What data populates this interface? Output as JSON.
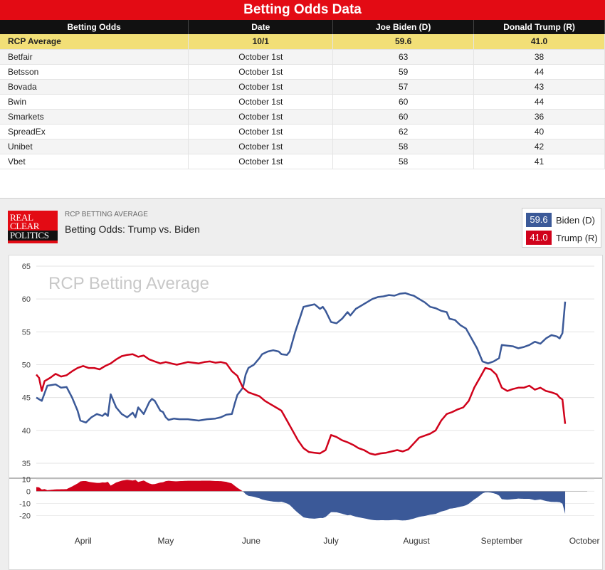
{
  "table": {
    "title": "Betting Odds Data",
    "headers": [
      "Betting Odds",
      "Date",
      "Joe Biden (D)",
      "Donald Trump (R)"
    ],
    "average": {
      "source": "RCP Average",
      "date": "10/1",
      "biden": "59.6",
      "trump": "41.0"
    },
    "rows": [
      {
        "source": "Betfair",
        "date": "October 1st",
        "biden": "63",
        "trump": "38"
      },
      {
        "source": "Betsson",
        "date": "October 1st",
        "biden": "59",
        "trump": "44"
      },
      {
        "source": "Bovada",
        "date": "October 1st",
        "biden": "57",
        "trump": "43"
      },
      {
        "source": "Bwin",
        "date": "October 1st",
        "biden": "60",
        "trump": "44"
      },
      {
        "source": "Smarkets",
        "date": "October 1st",
        "biden": "60",
        "trump": "36"
      },
      {
        "source": "SpreadEx",
        "date": "October 1st",
        "biden": "62",
        "trump": "40"
      },
      {
        "source": "Unibet",
        "date": "October 1st",
        "biden": "58",
        "trump": "42"
      },
      {
        "source": "Vbet",
        "date": "October 1st",
        "biden": "58",
        "trump": "41"
      }
    ]
  },
  "chart_header": {
    "logo": [
      "REAL",
      "CLEAR",
      "POLITICS"
    ],
    "subtitle": "RCP BETTING AVERAGE",
    "title": "Betting Odds: Trump vs. Biden",
    "legend": [
      {
        "value": "59.6",
        "label": "Biden (D)",
        "color": "#3b5998"
      },
      {
        "value": "41.0",
        "label": "Trump (R)",
        "color": "#d0021b"
      }
    ]
  },
  "chart_data": {
    "type": "line",
    "watermark": "RCP Betting Average",
    "x_labels": [
      "April",
      "May",
      "June",
      "July",
      "August",
      "September",
      "October"
    ],
    "x_label_days": [
      17,
      47,
      78,
      107,
      138,
      169,
      199
    ],
    "x_range_days": [
      0,
      200
    ],
    "ylim": [
      35,
      65
    ],
    "yticks": [
      65,
      60,
      55,
      50,
      45,
      40,
      35
    ],
    "spread_ylim": [
      -25,
      12
    ],
    "spread_yticks": [
      10,
      0,
      -10,
      -20
    ],
    "colors": {
      "biden": "#3b5998",
      "trump": "#d0021b"
    },
    "series": [
      {
        "name": "Biden (D)",
        "key": "biden",
        "points": [
          [
            0,
            45.0
          ],
          [
            2,
            44.5
          ],
          [
            4,
            46.8
          ],
          [
            7,
            47.0
          ],
          [
            9,
            46.5
          ],
          [
            11,
            46.6
          ],
          [
            13,
            45.0
          ],
          [
            15,
            43.0
          ],
          [
            16,
            41.5
          ],
          [
            18,
            41.2
          ],
          [
            20,
            42.0
          ],
          [
            22,
            42.5
          ],
          [
            24,
            42.2
          ],
          [
            25,
            42.6
          ],
          [
            26,
            42.2
          ],
          [
            27,
            45.5
          ],
          [
            29,
            43.5
          ],
          [
            31,
            42.5
          ],
          [
            33,
            42.0
          ],
          [
            35,
            42.7
          ],
          [
            36,
            42.0
          ],
          [
            37,
            43.5
          ],
          [
            39,
            42.5
          ],
          [
            41,
            44.3
          ],
          [
            42,
            44.8
          ],
          [
            43,
            44.5
          ],
          [
            45,
            43.0
          ],
          [
            46,
            42.8
          ],
          [
            47,
            42.0
          ],
          [
            48,
            41.6
          ],
          [
            50,
            41.8
          ],
          [
            52,
            41.7
          ],
          [
            55,
            41.7
          ],
          [
            57,
            41.6
          ],
          [
            59,
            41.5
          ],
          [
            62,
            41.7
          ],
          [
            65,
            41.8
          ],
          [
            67,
            42.0
          ],
          [
            69,
            42.4
          ],
          [
            71,
            42.5
          ],
          [
            72,
            44.0
          ],
          [
            73,
            45.4
          ],
          [
            75,
            46.5
          ],
          [
            76,
            48.5
          ],
          [
            77,
            49.5
          ],
          [
            79,
            50.0
          ],
          [
            81,
            51.0
          ],
          [
            82,
            51.6
          ],
          [
            84,
            52.0
          ],
          [
            86,
            52.2
          ],
          [
            88,
            52.0
          ],
          [
            89,
            51.6
          ],
          [
            91,
            51.5
          ],
          [
            92,
            52.0
          ],
          [
            93,
            53.5
          ],
          [
            94,
            55.0
          ],
          [
            96,
            57.5
          ],
          [
            97,
            58.8
          ],
          [
            99,
            59.0
          ],
          [
            101,
            59.2
          ],
          [
            103,
            58.5
          ],
          [
            104,
            58.8
          ],
          [
            105,
            58.2
          ],
          [
            107,
            56.5
          ],
          [
            109,
            56.3
          ],
          [
            111,
            57.0
          ],
          [
            113,
            58.0
          ],
          [
            114,
            57.5
          ],
          [
            116,
            58.5
          ],
          [
            118,
            59.0
          ],
          [
            120,
            59.5
          ],
          [
            122,
            60.0
          ],
          [
            124,
            60.3
          ],
          [
            126,
            60.4
          ],
          [
            128,
            60.6
          ],
          [
            130,
            60.5
          ],
          [
            132,
            60.8
          ],
          [
            134,
            60.9
          ],
          [
            136,
            60.6
          ],
          [
            137,
            60.5
          ],
          [
            139,
            60.0
          ],
          [
            141,
            59.5
          ],
          [
            143,
            58.8
          ],
          [
            145,
            58.6
          ],
          [
            147,
            58.2
          ],
          [
            149,
            58.0
          ],
          [
            150,
            57.0
          ],
          [
            152,
            56.8
          ],
          [
            154,
            56.0
          ],
          [
            156,
            55.5
          ],
          [
            158,
            54.0
          ],
          [
            160,
            52.5
          ],
          [
            162,
            50.5
          ],
          [
            164,
            50.2
          ],
          [
            166,
            50.5
          ],
          [
            168,
            51.0
          ],
          [
            169,
            53.0
          ],
          [
            171,
            52.9
          ],
          [
            173,
            52.8
          ],
          [
            175,
            52.5
          ],
          [
            177,
            52.7
          ],
          [
            179,
            53.0
          ],
          [
            181,
            53.5
          ],
          [
            183,
            53.2
          ],
          [
            185,
            54.0
          ],
          [
            187,
            54.5
          ],
          [
            189,
            54.3
          ],
          [
            190,
            54.0
          ],
          [
            191,
            54.8
          ],
          [
            192,
            59.6
          ]
        ]
      },
      {
        "name": "Trump (R)",
        "key": "trump",
        "points": [
          [
            0,
            48.5
          ],
          [
            1,
            48.0
          ],
          [
            2,
            46.0
          ],
          [
            3,
            47.5
          ],
          [
            5,
            48.0
          ],
          [
            7,
            48.6
          ],
          [
            9,
            48.2
          ],
          [
            11,
            48.4
          ],
          [
            13,
            49.0
          ],
          [
            15,
            49.5
          ],
          [
            17,
            49.8
          ],
          [
            19,
            49.5
          ],
          [
            21,
            49.5
          ],
          [
            23,
            49.3
          ],
          [
            25,
            49.8
          ],
          [
            27,
            50.2
          ],
          [
            29,
            50.8
          ],
          [
            31,
            51.3
          ],
          [
            33,
            51.5
          ],
          [
            35,
            51.6
          ],
          [
            37,
            51.2
          ],
          [
            39,
            51.4
          ],
          [
            41,
            50.8
          ],
          [
            43,
            50.5
          ],
          [
            45,
            50.2
          ],
          [
            47,
            50.4
          ],
          [
            49,
            50.2
          ],
          [
            51,
            50.0
          ],
          [
            53,
            50.2
          ],
          [
            55,
            50.4
          ],
          [
            57,
            50.3
          ],
          [
            59,
            50.2
          ],
          [
            61,
            50.4
          ],
          [
            63,
            50.5
          ],
          [
            65,
            50.3
          ],
          [
            67,
            50.4
          ],
          [
            69,
            50.2
          ],
          [
            71,
            49.0
          ],
          [
            73,
            48.3
          ],
          [
            75,
            46.5
          ],
          [
            77,
            45.8
          ],
          [
            79,
            45.5
          ],
          [
            81,
            45.2
          ],
          [
            83,
            44.5
          ],
          [
            85,
            44.0
          ],
          [
            87,
            43.5
          ],
          [
            89,
            43.0
          ],
          [
            91,
            41.5
          ],
          [
            93,
            40.0
          ],
          [
            95,
            38.5
          ],
          [
            97,
            37.3
          ],
          [
            99,
            36.7
          ],
          [
            101,
            36.6
          ],
          [
            103,
            36.5
          ],
          [
            105,
            37.0
          ],
          [
            107,
            39.3
          ],
          [
            109,
            39.0
          ],
          [
            111,
            38.5
          ],
          [
            113,
            38.2
          ],
          [
            115,
            37.8
          ],
          [
            117,
            37.3
          ],
          [
            119,
            37.0
          ],
          [
            121,
            36.5
          ],
          [
            123,
            36.3
          ],
          [
            125,
            36.5
          ],
          [
            127,
            36.6
          ],
          [
            129,
            36.8
          ],
          [
            131,
            37.0
          ],
          [
            133,
            36.8
          ],
          [
            135,
            37.1
          ],
          [
            137,
            38.0
          ],
          [
            139,
            38.9
          ],
          [
            141,
            39.2
          ],
          [
            143,
            39.5
          ],
          [
            145,
            40.0
          ],
          [
            147,
            41.5
          ],
          [
            149,
            42.5
          ],
          [
            151,
            42.8
          ],
          [
            153,
            43.2
          ],
          [
            155,
            43.5
          ],
          [
            157,
            44.5
          ],
          [
            159,
            46.5
          ],
          [
            161,
            48.0
          ],
          [
            163,
            49.5
          ],
          [
            165,
            49.3
          ],
          [
            167,
            48.5
          ],
          [
            169,
            46.5
          ],
          [
            171,
            46.0
          ],
          [
            173,
            46.3
          ],
          [
            175,
            46.5
          ],
          [
            177,
            46.5
          ],
          [
            179,
            46.8
          ],
          [
            181,
            46.2
          ],
          [
            183,
            46.5
          ],
          [
            185,
            46.0
          ],
          [
            187,
            45.8
          ],
          [
            189,
            45.5
          ],
          [
            190,
            45.0
          ],
          [
            191,
            44.7
          ],
          [
            192,
            41.0
          ]
        ]
      }
    ]
  }
}
